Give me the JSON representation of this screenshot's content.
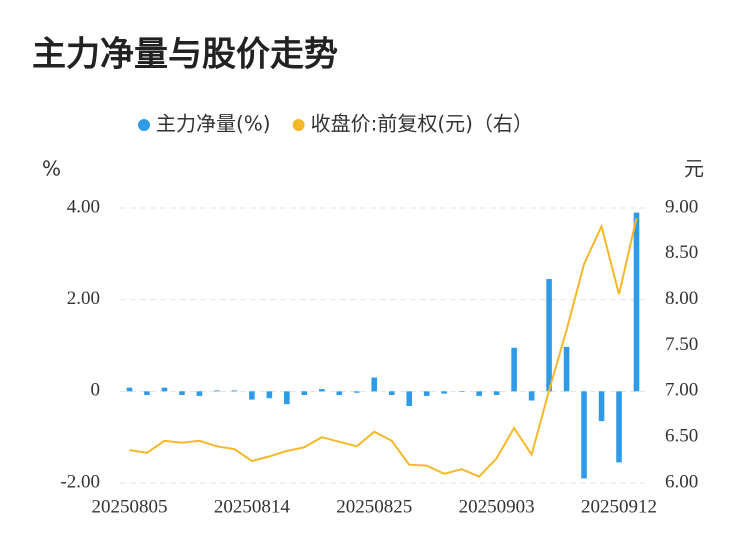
{
  "chart_data": {
    "type": "bar",
    "title": "主力净量与股价走势",
    "y_label": "%",
    "y2_label": "元",
    "categories": [
      "20250805",
      null,
      null,
      null,
      null,
      null,
      null,
      "20250814",
      null,
      null,
      null,
      null,
      null,
      null,
      "20250825",
      null,
      null,
      null,
      null,
      null,
      null,
      "20250903",
      null,
      null,
      null,
      null,
      null,
      null,
      "20250912",
      null
    ],
    "series": [
      {
        "name": "主力净量(%)",
        "type": "bar",
        "color": "#2f9be8",
        "values": [
          0.08,
          -0.08,
          0.08,
          -0.08,
          -0.1,
          0.02,
          0.02,
          -0.18,
          -0.15,
          -0.28,
          -0.08,
          0.05,
          -0.08,
          -0.03,
          0.3,
          -0.08,
          -0.32,
          -0.1,
          -0.05,
          0.0,
          -0.1,
          -0.08,
          0.95,
          -0.2,
          2.45,
          0.97,
          -1.9,
          -0.65,
          -1.55,
          3.9
        ]
      },
      {
        "name": "收盘价:前复权(元)（右）",
        "type": "line",
        "axis": "y2",
        "color": "#f5b82a",
        "values": [
          6.36,
          6.33,
          6.46,
          6.44,
          6.46,
          6.4,
          6.37,
          6.24,
          6.29,
          6.35,
          6.39,
          6.5,
          6.45,
          6.4,
          6.56,
          6.46,
          6.2,
          6.19,
          6.1,
          6.15,
          6.07,
          6.27,
          6.6,
          6.31,
          7.01,
          7.67,
          8.39,
          8.8,
          8.06,
          8.89
        ]
      }
    ],
    "ylim": [
      -2,
      4
    ],
    "yticks": [
      {
        "value": -2,
        "label": "-2.00"
      },
      0,
      {
        "value": 2,
        "label": "2.00"
      },
      {
        "value": 4,
        "label": "4.00"
      }
    ],
    "y2lim": [
      6,
      9
    ],
    "y2ticks": [
      {
        "value": 6,
        "label": "6.00"
      },
      {
        "value": 6.5,
        "label": "6.50"
      },
      {
        "value": 7,
        "label": "7.00"
      },
      {
        "value": 7.5,
        "label": "7.50"
      },
      {
        "value": 8,
        "label": "8.00"
      },
      {
        "value": 8.5,
        "label": "8.50"
      },
      {
        "value": 9,
        "label": "9.00"
      }
    ],
    "grid": true
  }
}
